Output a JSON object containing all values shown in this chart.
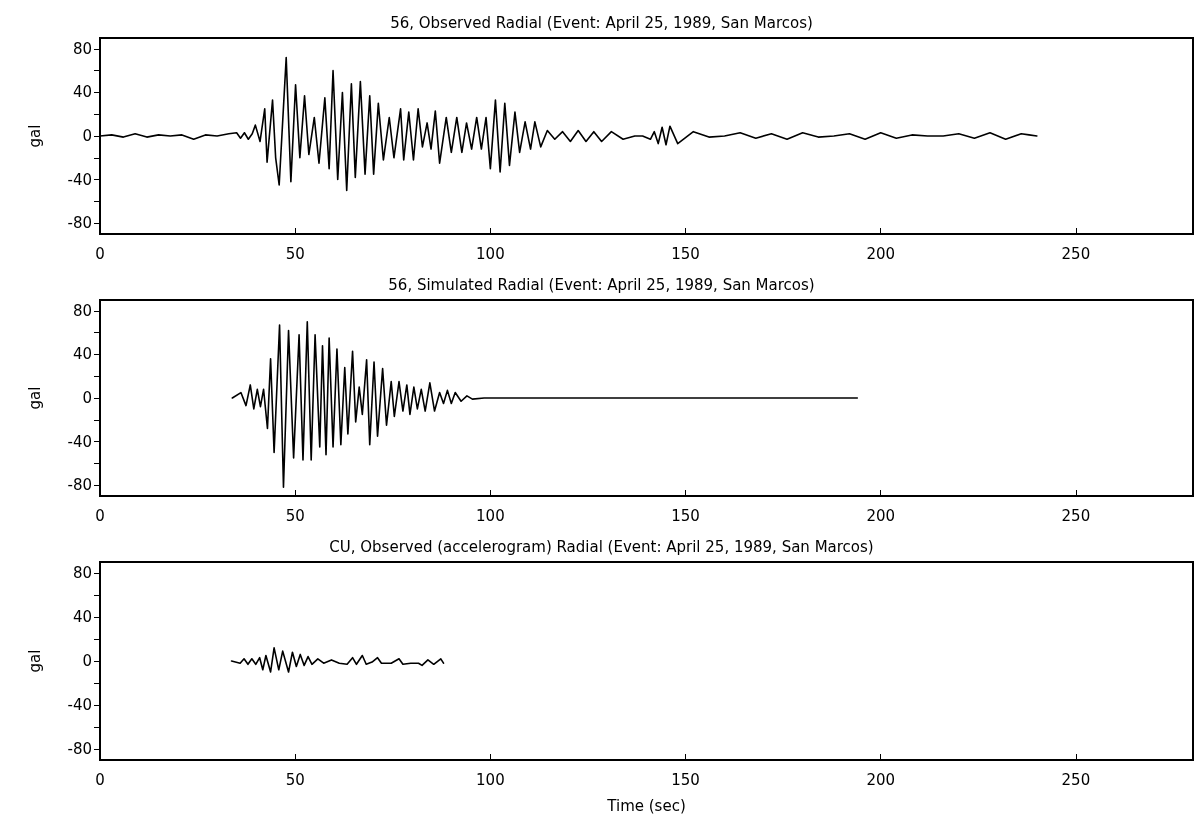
{
  "chart_data": [
    {
      "type": "line",
      "title": "56, Observed Radial (Event: April 25, 1989, San Marcos)",
      "ylabel": "gal",
      "color": "#000000",
      "marker": "none",
      "line_style": "solid",
      "grid": false,
      "xlim": [
        0,
        280
      ],
      "ylim": [
        -90,
        90
      ],
      "xticks": [
        0,
        50,
        100,
        150,
        200,
        250
      ],
      "yticks": [
        -80,
        {
          "value": -60,
          "label": null
        },
        -40,
        {
          "value": -20,
          "label": null
        },
        0,
        {
          "value": 20,
          "label": null
        },
        40,
        {
          "value": 60,
          "label": null
        },
        80
      ],
      "x": [
        0,
        3,
        6,
        9,
        12,
        15,
        18,
        21,
        24,
        27,
        30,
        33,
        35,
        36,
        37,
        38,
        39,
        39.8,
        41,
        42.2,
        42.8,
        44.2,
        45,
        45.9,
        47.7,
        48.9,
        50.1,
        51.2,
        52.4,
        53.5,
        54.9,
        56.1,
        57.6,
        58.7,
        59.7,
        60.9,
        62.1,
        63.2,
        64.4,
        65.4,
        66.7,
        67.9,
        69.1,
        70.1,
        71.3,
        72.6,
        74.1,
        75.3,
        77,
        77.8,
        79.1,
        80.3,
        81.5,
        82.6,
        83.8,
        84.8,
        85.9,
        87,
        88.7,
        90,
        91.4,
        92.7,
        93.9,
        95.2,
        96.5,
        97.7,
        98.9,
        100,
        101.3,
        102.5,
        103.7,
        104.9,
        106.3,
        107.5,
        108.9,
        110.3,
        111.4,
        112.9,
        114.6,
        116.5,
        118.5,
        120.5,
        122.5,
        124.5,
        126.5,
        128.5,
        131,
        134,
        137,
        139,
        141,
        142,
        143,
        144,
        145,
        146,
        148,
        152,
        156,
        160,
        164,
        168,
        172,
        176,
        180,
        184,
        188,
        192,
        196,
        200,
        204,
        208,
        212,
        216,
        220,
        224,
        228,
        232,
        236,
        238,
        240
      ],
      "values": [
        0,
        1,
        -1,
        2,
        -1,
        1,
        0,
        1,
        -3,
        1,
        0,
        2,
        3,
        -2,
        3,
        -3,
        2,
        10,
        -5,
        25,
        -24,
        33,
        -20,
        -45,
        72,
        -42,
        47,
        -20,
        37,
        -17,
        17,
        -25,
        35,
        -30,
        60,
        -40,
        40,
        -50,
        48,
        -38,
        50,
        -35,
        37,
        -35,
        30,
        -22,
        17,
        -20,
        25,
        -22,
        22,
        -22,
        25,
        -10,
        12,
        -12,
        23,
        -25,
        17,
        -15,
        17,
        -15,
        12,
        -12,
        17,
        -12,
        17,
        -30,
        33,
        -33,
        30,
        -27,
        22,
        -15,
        13,
        -12,
        13,
        -10,
        5,
        -3,
        4,
        -5,
        5,
        -5,
        4,
        -5,
        4,
        -3,
        0,
        0,
        -3,
        4,
        -7,
        8,
        -8,
        9,
        -7,
        4,
        -1,
        0,
        3,
        -2,
        2,
        -3,
        3,
        -1,
        0,
        2,
        -3,
        3,
        -2,
        1,
        0,
        0,
        2,
        -2,
        3,
        -3,
        2,
        1,
        0
      ]
    },
    {
      "type": "line",
      "title": "56, Simulated Radial (Event: April 25, 1989, San Marcos)",
      "ylabel": "gal",
      "color": "#000000",
      "marker": "none",
      "line_style": "solid",
      "grid": false,
      "xlim": [
        0,
        280
      ],
      "ylim": [
        -90,
        90
      ],
      "xticks": [
        0,
        50,
        100,
        150,
        200,
        250
      ],
      "yticks": [
        -80,
        {
          "value": -60,
          "label": null
        },
        -40,
        {
          "value": -20,
          "label": null
        },
        0,
        {
          "value": 20,
          "label": null
        },
        40,
        {
          "value": 60,
          "label": null
        },
        80
      ],
      "x": [
        33.9,
        36.1,
        37.4,
        38.5,
        39.4,
        40.3,
        41.1,
        41.9,
        42.9,
        43.7,
        44.6,
        46,
        47,
        48.3,
        49.6,
        51,
        52,
        53.1,
        54.1,
        55.1,
        56.3,
        57,
        57.9,
        58.7,
        59.7,
        60.7,
        61.7,
        62.7,
        63.5,
        64.7,
        65.5,
        66.4,
        67.2,
        68.3,
        69.1,
        70.2,
        71.1,
        72.4,
        73.4,
        74.6,
        75.4,
        76.6,
        77.6,
        78.6,
        79.4,
        80.4,
        81.3,
        82.3,
        83.3,
        84.5,
        85.7,
        87,
        88,
        89,
        90,
        91,
        92.5,
        94,
        95.4,
        98.4,
        194
      ],
      "values": [
        0,
        5,
        -7,
        12,
        -10,
        8,
        -8,
        8,
        -28,
        36,
        -50,
        67,
        -82,
        62,
        -55,
        58,
        -57,
        70,
        -57,
        58,
        -45,
        48,
        -52,
        55,
        -45,
        45,
        -43,
        28,
        -33,
        43,
        -22,
        10,
        -15,
        35,
        -43,
        33,
        -35,
        27,
        -25,
        15,
        -17,
        15,
        -12,
        12,
        -15,
        10,
        -10,
        8,
        -12,
        14,
        -12,
        5,
        -5,
        7,
        -5,
        5,
        -3,
        2,
        -1,
        0,
        0
      ]
    },
    {
      "type": "line",
      "title": "CU, Observed (accelerogram) Radial (Event: April 25, 1989, San Marcos)",
      "ylabel": "gal",
      "xlabel": "Time (sec)",
      "color": "#000000",
      "marker": "none",
      "line_style": "solid",
      "grid": false,
      "xlim": [
        0,
        280
      ],
      "ylim": [
        -90,
        90
      ],
      "xticks": [
        0,
        50,
        100,
        150,
        200,
        250
      ],
      "yticks": [
        -80,
        {
          "value": -60,
          "label": null
        },
        -40,
        {
          "value": -20,
          "label": null
        },
        0,
        {
          "value": 20,
          "label": null
        },
        40,
        {
          "value": 60,
          "label": null
        },
        80
      ],
      "x": [
        33.7,
        35.9,
        36.9,
        37.9,
        38.9,
        39.9,
        40.9,
        41.7,
        42.5,
        43.7,
        44.6,
        45.8,
        46.8,
        48.3,
        49.3,
        50.3,
        51.3,
        52.3,
        53.3,
        54.3,
        55.8,
        57.3,
        59.3,
        61.3,
        63.3,
        64.7,
        65.7,
        67.2,
        68.2,
        69.7,
        71.1,
        72.1,
        74.6,
        76.6,
        77.6,
        79.6,
        81.6,
        82.5,
        84,
        85.5,
        87.3,
        88
      ],
      "values": [
        0,
        -2,
        2,
        -3,
        2,
        -3,
        3,
        -8,
        5,
        -10,
        12,
        -8,
        9,
        -10,
        8,
        -5,
        6,
        -4,
        4,
        -3,
        2,
        -2,
        1,
        -2,
        -3,
        3,
        -3,
        5,
        -3,
        -1,
        3,
        -2,
        -2,
        2,
        -3,
        -2,
        -2,
        -4,
        1,
        -3,
        2,
        -2
      ]
    }
  ]
}
